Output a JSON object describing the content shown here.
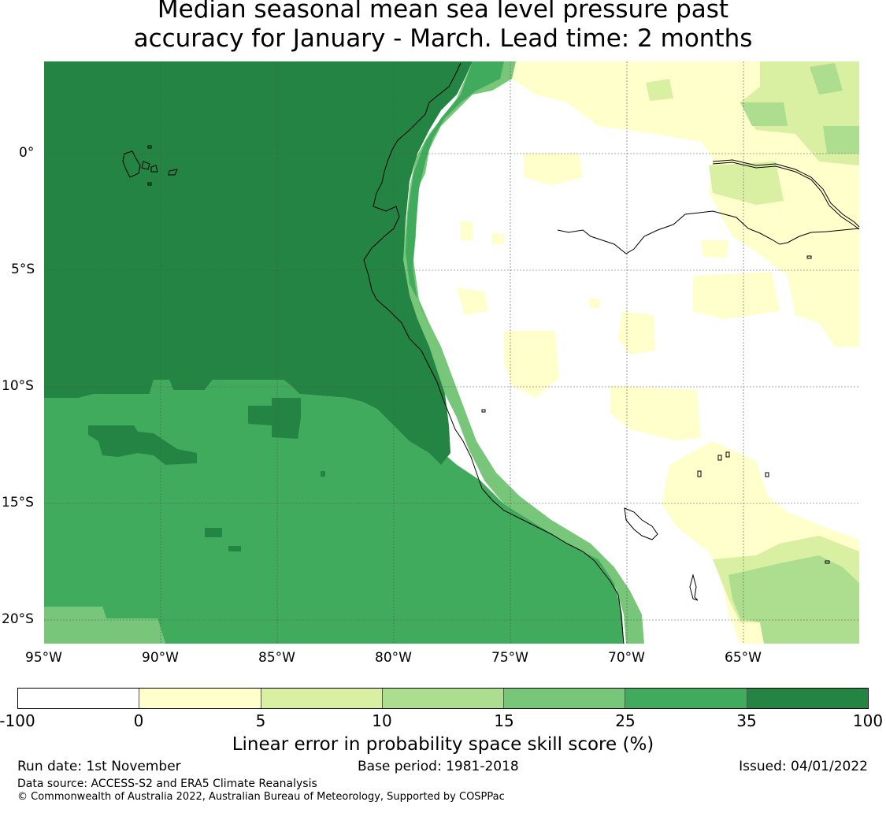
{
  "title": {
    "line1": "Median seasonal mean sea level pressure past",
    "line2": "accuracy for January - March. Lead time: 2 months"
  },
  "map": {
    "lat_labels": [
      "0°",
      "5°S",
      "10°S",
      "15°S",
      "20°S"
    ],
    "lon_labels": [
      "95°W",
      "90°W",
      "85°W",
      "80°W",
      "75°W",
      "70°W",
      "65°W"
    ],
    "colors": {
      "lt0": "#ffffff",
      "0-5": "#ffffcc",
      "5-10": "#d9f0a3",
      "10-15": "#addd8e",
      "15-25": "#78c679",
      "25-35": "#41ab5d",
      "35-100": "#238443"
    }
  },
  "colorbar": {
    "ticks": [
      "-100",
      "0",
      "5",
      "10",
      "15",
      "25",
      "35",
      "100"
    ],
    "segment_colors": [
      "#ffffff",
      "#ffffcc",
      "#d9f0a3",
      "#addd8e",
      "#78c679",
      "#41ab5d",
      "#238443"
    ],
    "label": "Linear error in probability space skill score (%)"
  },
  "footer": {
    "run_date": "Run date: 1st November",
    "base_period": "Base period: 1981-2018",
    "issued": "Issued: 04/01/2022",
    "data_source": "Data source: ACCESS-S2 and ERA5 Climate Reanalysis",
    "copyright": "© Commonwealth of Australia 2022, Australian Bureau of Meteorology, Supported by COSPPac"
  }
}
